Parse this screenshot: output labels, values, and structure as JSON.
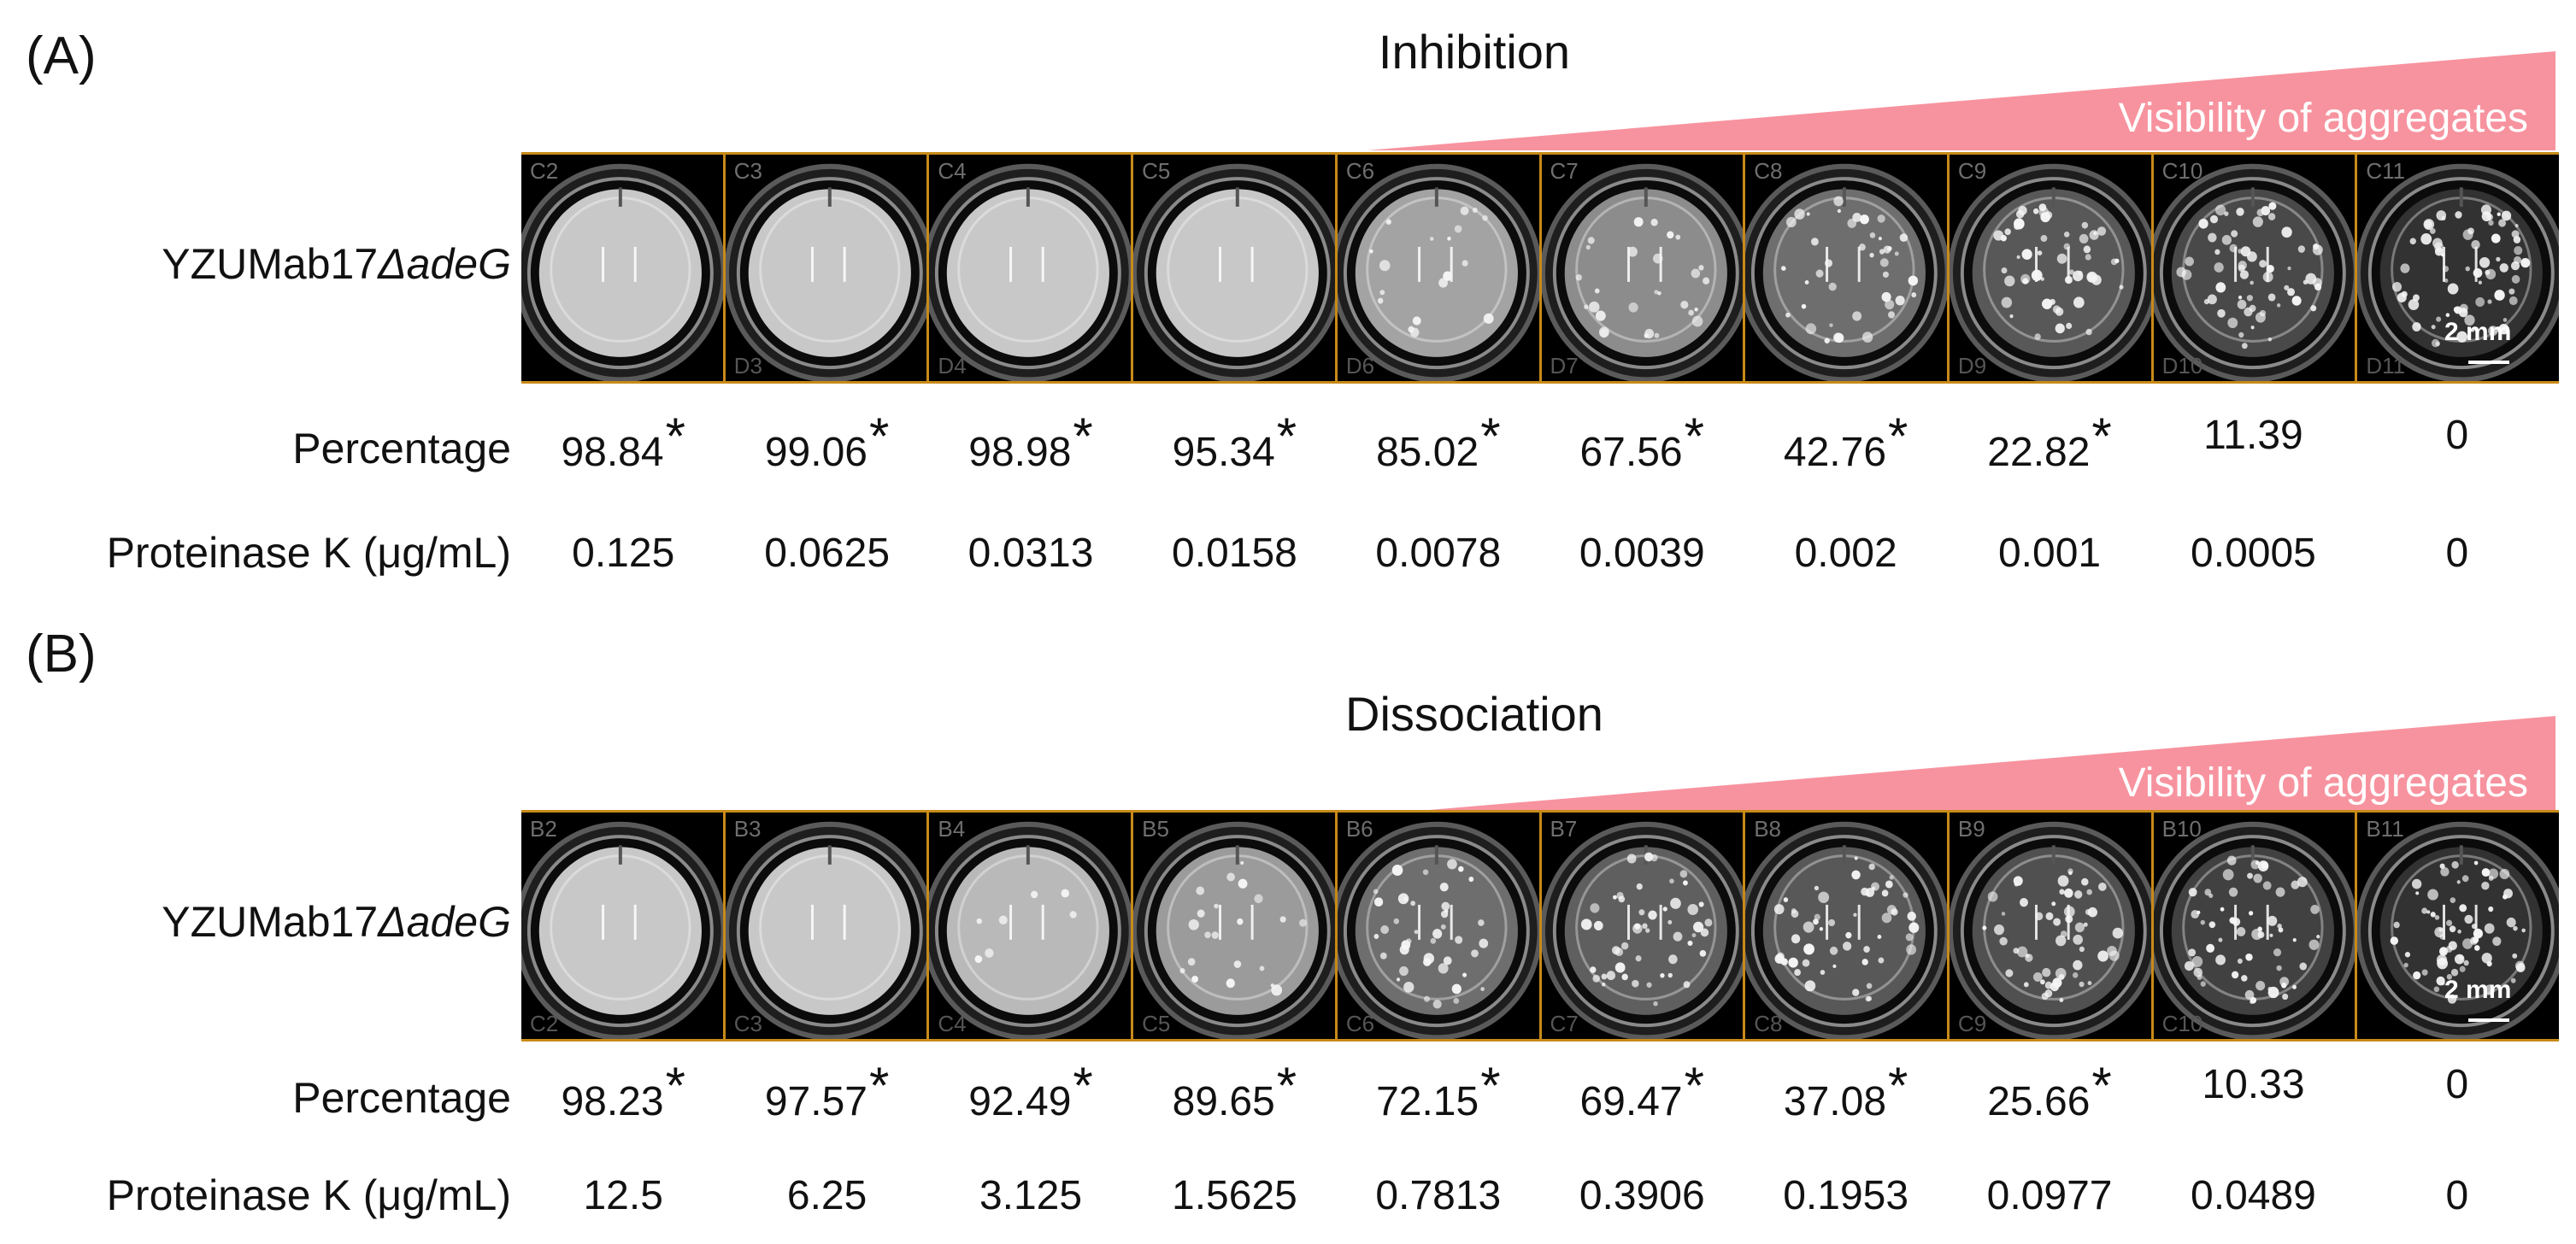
{
  "colors": {
    "wedge": "#f7939f",
    "frame": "#c88a18",
    "well_bg": "#000000"
  },
  "panels": [
    {
      "letter": "(A)",
      "title": "Inhibition",
      "wedge_label": "Visibility of aggregates",
      "strain_label": "YZUMab17",
      "strain_suffix": "ΔadeG",
      "row_percentage_label": "Percentage",
      "row_conc_label": "Proteinase K (μg/mL)",
      "scale_label": "2 mm",
      "wells": [
        "C2",
        "C3",
        "C4",
        "C5",
        "C6",
        "C7",
        "C8",
        "C9",
        "C10",
        "C11"
      ],
      "wells_bottom": [
        "",
        "D3",
        "D4",
        "",
        "D6",
        "D7",
        "",
        "D9",
        "D10",
        "D11"
      ],
      "percentages": [
        "98.84",
        "99.06",
        "98.98",
        "95.34",
        "85.02",
        "67.56",
        "42.76",
        "22.82",
        "11.39",
        "0"
      ],
      "significant": [
        true,
        true,
        true,
        true,
        true,
        true,
        true,
        true,
        false,
        false
      ],
      "aggregation": [
        0,
        0,
        0,
        0,
        0.25,
        0.4,
        0.6,
        0.75,
        0.85,
        1
      ],
      "concentrations": [
        "0.125",
        "0.0625",
        "0.0313",
        "0.0158",
        "0.0078",
        "0.0039",
        "0.002",
        "0.001",
        "0.0005",
        "0"
      ]
    },
    {
      "letter": "(B)",
      "title": "Dissociation",
      "wedge_label": "Visibility of aggregates",
      "strain_label": "YZUMab17",
      "strain_suffix": "ΔadeG",
      "row_percentage_label": "Percentage",
      "row_conc_label": "Proteinase K (μg/mL)",
      "scale_label": "2 mm",
      "wells": [
        "B2",
        "B3",
        "B4",
        "B5",
        "B6",
        "B7",
        "B8",
        "B9",
        "B10",
        "B11"
      ],
      "wells_bottom": [
        "C2",
        "C3",
        "C4",
        "C5",
        "C6",
        "C7",
        "C8",
        "C9",
        "C10",
        ""
      ],
      "percentages": [
        "98.23",
        "97.57",
        "92.49",
        "89.65",
        "72.15",
        "69.47",
        "37.08",
        "25.66",
        "10.33",
        "0"
      ],
      "significant": [
        true,
        true,
        true,
        true,
        true,
        true,
        true,
        true,
        false,
        false
      ],
      "aggregation": [
        0,
        0,
        0.1,
        0.3,
        0.6,
        0.7,
        0.75,
        0.8,
        0.9,
        1
      ],
      "concentrations": [
        "12.5",
        "6.25",
        "3.125",
        "1.5625",
        "0.7813",
        "0.3906",
        "0.1953",
        "0.0977",
        "0.0489",
        "0"
      ]
    }
  ]
}
